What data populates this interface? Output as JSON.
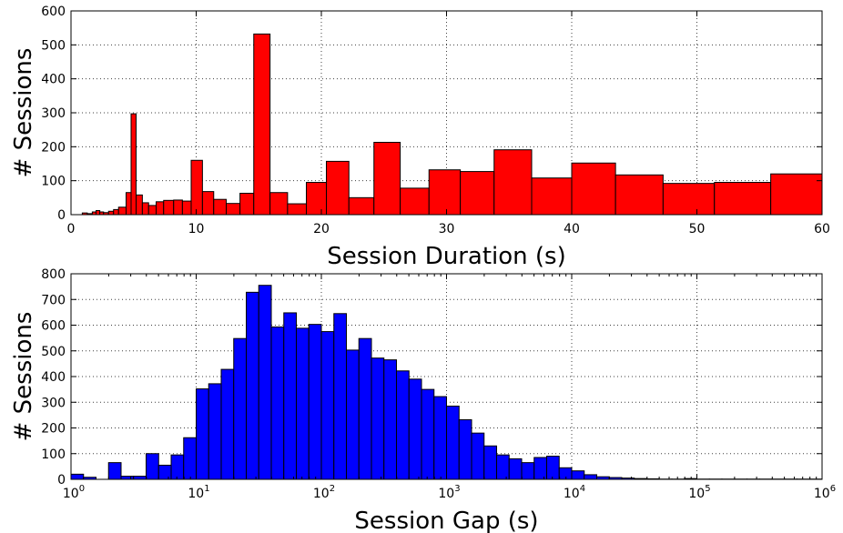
{
  "chart_data": [
    {
      "type": "bar",
      "subtype": "histogram",
      "color": "#ff0000",
      "xlabel": "Session Duration (s)",
      "ylabel": "# Sessions",
      "xlim": [
        0,
        60
      ],
      "ylim": [
        0,
        600
      ],
      "x_scale": "linear",
      "grid": true,
      "xticks": [
        0,
        10,
        20,
        30,
        40,
        50,
        60
      ],
      "xtick_labels": [
        "0",
        "10",
        "20",
        "30",
        "40",
        "50",
        "60"
      ],
      "yticks": [
        0,
        100,
        200,
        300,
        400,
        500,
        600
      ],
      "ytick_labels": [
        "0",
        "100",
        "200",
        "300",
        "400",
        "500",
        "600"
      ],
      "bins": [
        {
          "x0": 0.9,
          "x1": 1.3,
          "y": 5
        },
        {
          "x0": 1.3,
          "x1": 1.7,
          "y": 3
        },
        {
          "x0": 1.7,
          "x1": 2.0,
          "y": 8
        },
        {
          "x0": 2.0,
          "x1": 2.3,
          "y": 12
        },
        {
          "x0": 2.3,
          "x1": 2.6,
          "y": 8
        },
        {
          "x0": 2.6,
          "x1": 3.0,
          "y": 6
        },
        {
          "x0": 3.0,
          "x1": 3.4,
          "y": 10
        },
        {
          "x0": 3.4,
          "x1": 3.8,
          "y": 15
        },
        {
          "x0": 3.8,
          "x1": 4.4,
          "y": 22
        },
        {
          "x0": 4.4,
          "x1": 4.8,
          "y": 65
        },
        {
          "x0": 4.8,
          "x1": 5.2,
          "y": 297
        },
        {
          "x0": 5.2,
          "x1": 5.7,
          "y": 58
        },
        {
          "x0": 5.7,
          "x1": 6.2,
          "y": 35
        },
        {
          "x0": 6.2,
          "x1": 6.8,
          "y": 27
        },
        {
          "x0": 6.8,
          "x1": 7.4,
          "y": 38
        },
        {
          "x0": 7.4,
          "x1": 8.2,
          "y": 42
        },
        {
          "x0": 8.2,
          "x1": 8.9,
          "y": 43
        },
        {
          "x0": 8.9,
          "x1": 9.6,
          "y": 40
        },
        {
          "x0": 9.6,
          "x1": 10.5,
          "y": 160
        },
        {
          "x0": 10.5,
          "x1": 11.4,
          "y": 68
        },
        {
          "x0": 11.4,
          "x1": 12.4,
          "y": 45
        },
        {
          "x0": 12.4,
          "x1": 13.5,
          "y": 33
        },
        {
          "x0": 13.5,
          "x1": 14.6,
          "y": 63
        },
        {
          "x0": 14.6,
          "x1": 15.9,
          "y": 532
        },
        {
          "x0": 15.9,
          "x1": 17.3,
          "y": 65
        },
        {
          "x0": 17.3,
          "x1": 18.8,
          "y": 32
        },
        {
          "x0": 18.8,
          "x1": 20.4,
          "y": 95
        },
        {
          "x0": 20.4,
          "x1": 22.2,
          "y": 157
        },
        {
          "x0": 22.2,
          "x1": 24.2,
          "y": 50
        },
        {
          "x0": 24.2,
          "x1": 26.3,
          "y": 213
        },
        {
          "x0": 26.3,
          "x1": 28.6,
          "y": 78
        },
        {
          "x0": 28.6,
          "x1": 31.1,
          "y": 132
        },
        {
          "x0": 31.1,
          "x1": 33.8,
          "y": 127
        },
        {
          "x0": 33.8,
          "x1": 36.8,
          "y": 191
        },
        {
          "x0": 36.8,
          "x1": 40.0,
          "y": 108
        },
        {
          "x0": 40.0,
          "x1": 43.5,
          "y": 152
        },
        {
          "x0": 43.5,
          "x1": 47.3,
          "y": 117
        },
        {
          "x0": 47.3,
          "x1": 51.4,
          "y": 92
        },
        {
          "x0": 51.4,
          "x1": 55.9,
          "y": 95
        },
        {
          "x0": 55.9,
          "x1": 60.0,
          "y": 120
        }
      ]
    },
    {
      "type": "bar",
      "subtype": "histogram",
      "color": "#0000ff",
      "xlabel": "Session Gap (s)",
      "ylabel": "# Sessions",
      "xlim": [
        1,
        1000000
      ],
      "ylim": [
        0,
        800
      ],
      "x_scale": "log",
      "grid": true,
      "xticks": [
        1,
        10,
        100,
        1000,
        10000,
        100000,
        1000000
      ],
      "xtick_labels": [
        {
          "base": "10",
          "exp": "0"
        },
        {
          "base": "10",
          "exp": "1"
        },
        {
          "base": "10",
          "exp": "2"
        },
        {
          "base": "10",
          "exp": "3"
        },
        {
          "base": "10",
          "exp": "4"
        },
        {
          "base": "10",
          "exp": "5"
        },
        {
          "base": "10",
          "exp": "6"
        }
      ],
      "yticks": [
        0,
        100,
        200,
        300,
        400,
        500,
        600,
        700,
        800
      ],
      "ytick_labels": [
        "0",
        "100",
        "200",
        "300",
        "400",
        "500",
        "600",
        "700",
        "800"
      ],
      "bin_edges": [
        1,
        1.259,
        1.585,
        1.995,
        2.512,
        3.162,
        3.981,
        5.012,
        6.31,
        7.943,
        10,
        12.59,
        15.85,
        19.95,
        25.12,
        31.62,
        39.81,
        50.12,
        63.1,
        79.43,
        100,
        125.9,
        158.5,
        199.5,
        251.2,
        316.2,
        398.1,
        501.2,
        631,
        794.3,
        1000,
        1259,
        1585,
        1995,
        2512,
        3162,
        3981,
        5012,
        6310,
        7943,
        10000,
        12589,
        15849,
        19953,
        25119,
        31623,
        39811,
        50119,
        63096,
        79433,
        100000,
        125893,
        158489,
        199526,
        251189,
        316228,
        398107,
        501187,
        630957,
        794328,
        1000000
      ],
      "values": [
        20,
        8,
        0,
        65,
        12,
        12,
        100,
        55,
        95,
        162,
        352,
        372,
        428,
        548,
        728,
        755,
        593,
        648,
        588,
        603,
        575,
        645,
        503,
        548,
        472,
        465,
        422,
        390,
        350,
        322,
        285,
        232,
        180,
        130,
        95,
        80,
        65,
        85,
        90,
        45,
        33,
        18,
        10,
        7,
        5,
        3,
        2,
        1,
        1,
        3,
        1,
        1,
        1,
        1,
        1,
        1,
        1,
        1,
        1,
        1
      ]
    }
  ]
}
